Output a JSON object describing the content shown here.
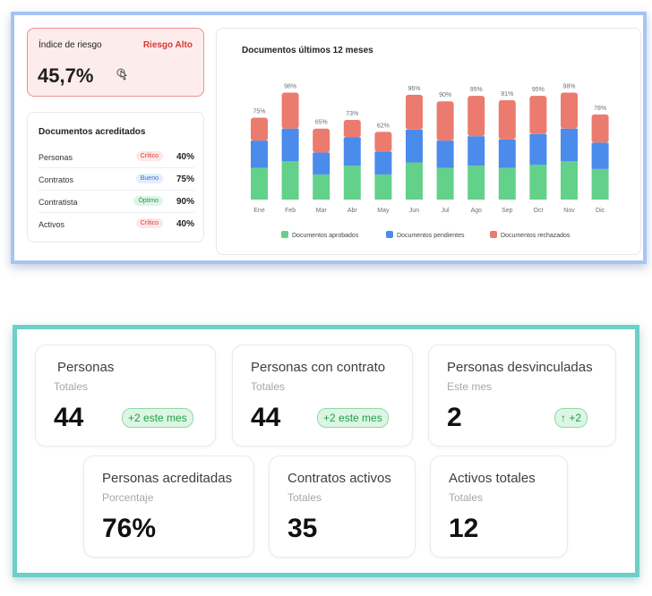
{
  "risk": {
    "title": "Índice de riesgo",
    "level": "Riesgo Alto",
    "value": "45,7%",
    "icon": "pointer-icon"
  },
  "accredited": {
    "title": "Documentos acreditados",
    "rows": [
      {
        "name": "Personas",
        "status": "Crítico",
        "status_color": "#d63a36",
        "status_bg": "#fde7e6",
        "percent": "40%"
      },
      {
        "name": "Contratos",
        "status": "Bueno",
        "status_color": "#3a73d6",
        "status_bg": "#e4edfc",
        "percent": "75%"
      },
      {
        "name": "Contratista",
        "status": "Óptimo",
        "status_color": "#22974a",
        "status_bg": "#dff5e6",
        "percent": "90%"
      },
      {
        "name": "Activos",
        "status": "Crítico",
        "status_color": "#d63a36",
        "status_bg": "#fde7e6",
        "percent": "40%"
      }
    ]
  },
  "chart_data": {
    "type": "bar",
    "stacked": true,
    "title": "Documentos últimos 12 meses",
    "categories": [
      "Ene",
      "Feb",
      "Mar",
      "Abr",
      "May",
      "Jun",
      "Jul",
      "Ago",
      "Sep",
      "Oct",
      "Nov",
      "Dic"
    ],
    "totals_labels": [
      "75%",
      "98%",
      "65%",
      "73%",
      "62%",
      "96%",
      "90%",
      "95%",
      "91%",
      "95%",
      "98%",
      "78%"
    ],
    "totals": [
      75,
      98,
      65,
      73,
      62,
      96,
      90,
      95,
      91,
      95,
      98,
      78
    ],
    "series": [
      {
        "name": "Documentos aprobados",
        "color": "#63d18a",
        "values": [
          29,
          35,
          23,
          31,
          23,
          34,
          29,
          31,
          29,
          32,
          35,
          28
        ]
      },
      {
        "name": "Documentos pendientes",
        "color": "#4b8bec",
        "values": [
          25,
          30,
          20,
          26,
          21,
          30,
          25,
          27,
          26,
          28,
          30,
          24
        ]
      },
      {
        "name": "Documentos rechazados",
        "color": "#ec7b6f",
        "values": [
          21,
          33,
          22,
          16,
          18,
          32,
          36,
          37,
          36,
          35,
          33,
          26
        ]
      }
    ],
    "legend_position": "bottom",
    "grid": false
  },
  "stats": [
    {
      "title": "Personas",
      "subtitle": "Totales",
      "value": "44",
      "badge": "+2 este mes"
    },
    {
      "title": "Personas con contrato",
      "subtitle": "Totales",
      "value": "44",
      "badge": "+2 este mes"
    },
    {
      "title": "Personas desvinculadas",
      "subtitle": "Este mes",
      "value": "2",
      "badge": "↑  +2"
    },
    {
      "title": "Personas acreditadas",
      "subtitle": "Porcentaje",
      "value": "76%"
    },
    {
      "title": "Contratos activos",
      "subtitle": "Totales",
      "value": "35"
    },
    {
      "title": "Activos totales",
      "subtitle": "Totales",
      "value": "12"
    }
  ]
}
